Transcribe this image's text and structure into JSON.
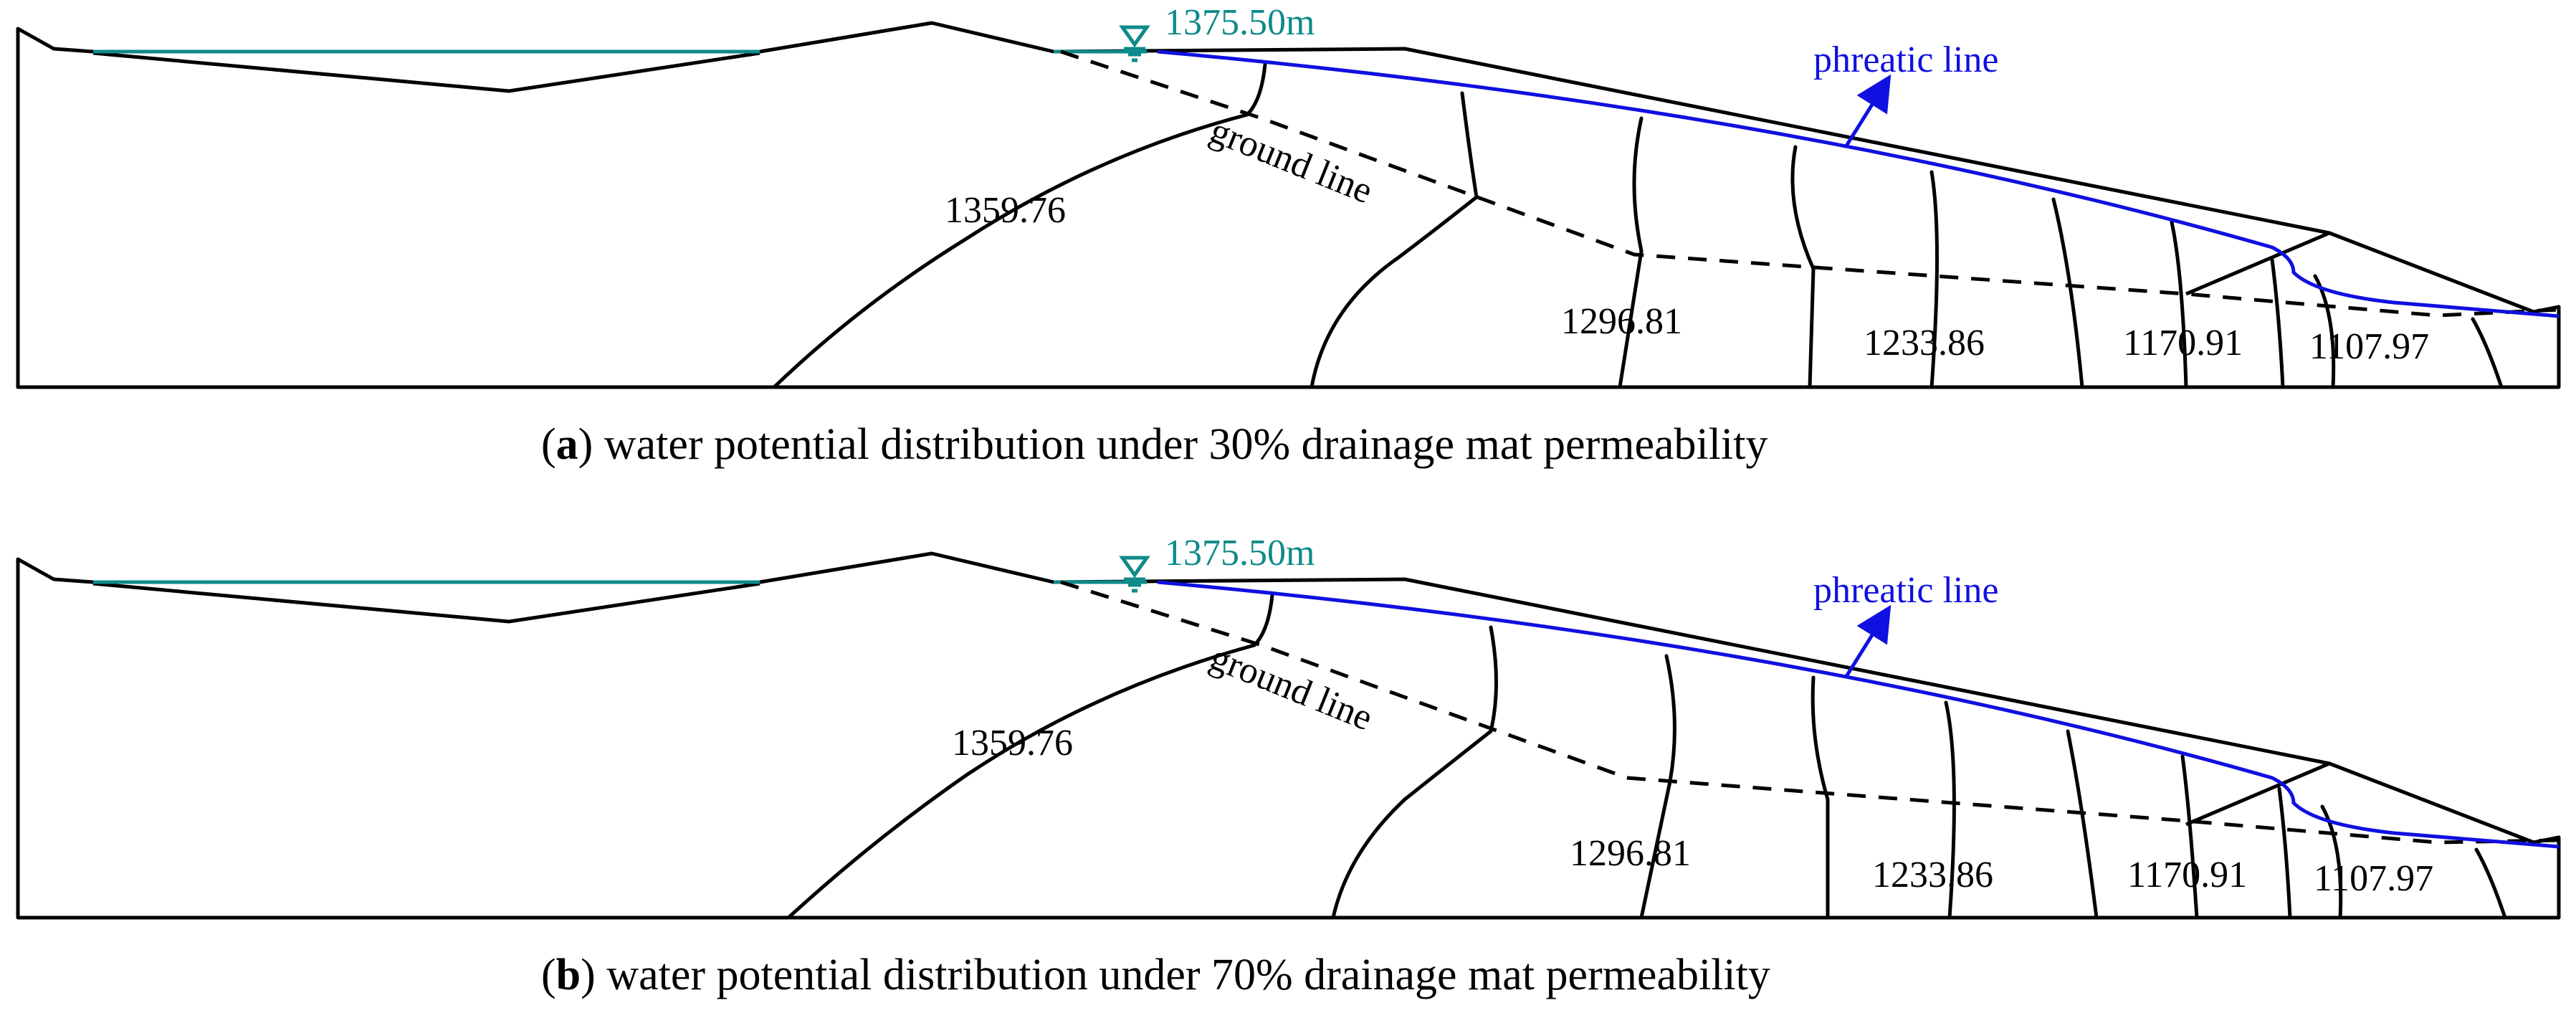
{
  "colors": {
    "phreatic": "#1010e0",
    "water_level": "#0e8a8a",
    "lines": "#000000"
  },
  "panels": [
    {
      "letter": "a",
      "caption": "water potential distribution under 30% drainage mat permeability",
      "water_level": "1375.50m",
      "phreatic_label": "phreatic line",
      "ground_label": "ground line",
      "contour_labels": [
        "1359.76",
        "1296.81",
        "1233.86",
        "1170.91",
        "1107.97"
      ]
    },
    {
      "letter": "b",
      "caption": "water potential distribution under 70% drainage mat permeability",
      "water_level": "1375.50m",
      "phreatic_label": "phreatic line",
      "ground_label": "ground line",
      "contour_labels": [
        "1359.76",
        "1296.81",
        "1233.86",
        "1170.91",
        "1107.97"
      ]
    }
  ]
}
